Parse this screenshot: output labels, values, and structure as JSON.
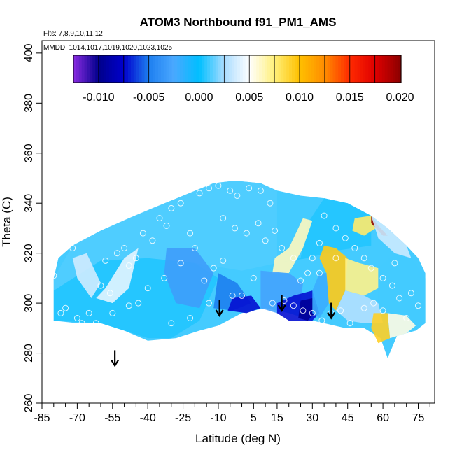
{
  "chart_data": {
    "type": "heatmap",
    "title": "ATOM3 Northbound f91_PM1_AMS",
    "flights_note": "Flts: 7,8,9,10,11,12",
    "mmdd_note": "MMDD: 1014,1017,1019,1020,1023,1025",
    "xlabel": "Latitude (deg N)",
    "ylabel": "Theta (C)",
    "xlim": [
      -85,
      82
    ],
    "ylim": [
      260,
      405
    ],
    "x_ticks": [
      -85,
      -70,
      -55,
      -40,
      -25,
      -10,
      5,
      15,
      30,
      45,
      60,
      75
    ],
    "x_tick_labels": [
      "-85",
      "-70",
      "-55",
      "-40",
      "-25",
      "-10",
      "5",
      "15",
      "30",
      "45",
      "60",
      "75"
    ],
    "x_minor_ticks": [
      -80,
      -75,
      -65,
      -60,
      -50,
      -45,
      -35,
      -30,
      -20,
      -15,
      -5,
      0,
      10,
      20,
      25,
      35,
      40,
      50,
      55,
      65,
      70,
      80
    ],
    "y_ticks": [
      260,
      280,
      300,
      320,
      340,
      360,
      380,
      400
    ],
    "y_tick_labels": [
      "260",
      "280",
      "300",
      "320",
      "340",
      "360",
      "380",
      "400"
    ],
    "colorbar": {
      "range": [
        -0.0125,
        0.0201
      ],
      "tick_values": [
        -0.01,
        -0.005,
        0.0,
        0.005,
        0.01,
        0.015,
        0.02
      ],
      "tick_labels": [
        "-0.010",
        "-0.005",
        "0.000",
        "0.005",
        "0.010",
        "0.015",
        "0.020"
      ],
      "stops": [
        {
          "v": -0.0125,
          "c": "#8b2be2"
        },
        {
          "v": -0.01,
          "c": "#00008b"
        },
        {
          "v": -0.0075,
          "c": "#0000cd"
        },
        {
          "v": -0.005,
          "c": "#1e7ff0"
        },
        {
          "v": -0.0025,
          "c": "#4aa8ff"
        },
        {
          "v": 0.0,
          "c": "#00bfff"
        },
        {
          "v": 0.0025,
          "c": "#a9dcff"
        },
        {
          "v": 0.005,
          "c": "#ffffff"
        },
        {
          "v": 0.0075,
          "c": "#fff07a"
        },
        {
          "v": 0.01,
          "c": "#ffc000"
        },
        {
          "v": 0.0125,
          "c": "#ff8c00"
        },
        {
          "v": 0.015,
          "c": "#ff2a00"
        },
        {
          "v": 0.0175,
          "c": "#e00000"
        },
        {
          "v": 0.0201,
          "c": "#8b0000"
        }
      ]
    },
    "regions": [
      {
        "value": 0.0012,
        "polygon": [
          [
            -80,
            310
          ],
          [
            -72,
            323
          ],
          [
            -60,
            329
          ],
          [
            -48,
            334
          ],
          [
            -38,
            338
          ],
          [
            -25,
            343
          ],
          [
            -12,
            348
          ],
          [
            -3,
            349
          ],
          [
            8,
            348
          ],
          [
            12,
            346
          ],
          [
            15,
            345
          ],
          [
            15,
            316
          ],
          [
            0,
            313
          ],
          [
            -20,
            316
          ],
          [
            -40,
            318
          ],
          [
            -60,
            317
          ],
          [
            -80,
            305
          ]
        ]
      },
      {
        "value": 0.0005,
        "polygon": [
          [
            -80,
            305
          ],
          [
            -60,
            317
          ],
          [
            -40,
            318
          ],
          [
            -20,
            316
          ],
          [
            -10,
            310
          ],
          [
            -18,
            293
          ],
          [
            -30,
            286
          ],
          [
            -40,
            286
          ],
          [
            -50,
            289
          ],
          [
            -60,
            292
          ],
          [
            -80,
            293
          ]
        ]
      },
      {
        "value": 0.0042,
        "polygon": [
          [
            -62,
            302
          ],
          [
            -55,
            300
          ],
          [
            -48,
            306
          ],
          [
            -44,
            322
          ],
          [
            -50,
            318
          ],
          [
            -58,
            306
          ]
        ]
      },
      {
        "value": 0.0036,
        "polygon": [
          [
            -72,
            318
          ],
          [
            -66,
            320
          ],
          [
            -60,
            308
          ],
          [
            -64,
            302
          ],
          [
            -70,
            310
          ]
        ]
      },
      {
        "value": -0.0032,
        "polygon": [
          [
            -32,
            322
          ],
          [
            -20,
            322
          ],
          [
            -12,
            312
          ],
          [
            -18,
            298
          ],
          [
            -28,
            300
          ],
          [
            -33,
            312
          ]
        ]
      },
      {
        "value": -0.005,
        "polygon": [
          [
            -10,
            312
          ],
          [
            -2,
            308
          ],
          [
            4,
            300
          ],
          [
            -4,
            297
          ],
          [
            -12,
            298
          ]
        ]
      },
      {
        "value": -0.0072,
        "polygon": [
          [
            -4,
            302
          ],
          [
            4,
            303
          ],
          [
            8,
            298
          ],
          [
            2,
            296
          ],
          [
            -6,
            297
          ]
        ]
      },
      {
        "value": 0.0005,
        "polygon": [
          [
            15,
            345
          ],
          [
            15,
            316
          ],
          [
            25,
            318
          ],
          [
            28,
            332
          ],
          [
            35,
            342
          ],
          [
            45,
            340
          ],
          [
            55,
            335
          ],
          [
            55,
            323
          ],
          [
            40,
            321
          ],
          [
            28,
            318
          ],
          [
            15,
            316
          ]
        ]
      },
      {
        "value": 0.0062,
        "polygon": [
          [
            13,
            312
          ],
          [
            20,
            312
          ],
          [
            26,
            322
          ],
          [
            30,
            333
          ],
          [
            26,
            334
          ],
          [
            20,
            322
          ],
          [
            14,
            318
          ]
        ]
      },
      {
        "value": -0.0028,
        "polygon": [
          [
            8,
            313
          ],
          [
            20,
            312
          ],
          [
            26,
            308
          ],
          [
            25,
            300
          ],
          [
            15,
            296
          ],
          [
            8,
            298
          ]
        ]
      },
      {
        "value": -0.0072,
        "polygon": [
          [
            15,
            300
          ],
          [
            22,
            303
          ],
          [
            30,
            305
          ],
          [
            33,
            296
          ],
          [
            30,
            293
          ],
          [
            20,
            293
          ],
          [
            15,
            296
          ]
        ]
      },
      {
        "value": -0.0095,
        "polygon": [
          [
            25,
            301
          ],
          [
            30,
            302
          ],
          [
            32,
            297
          ],
          [
            28,
            293
          ],
          [
            24,
            294
          ]
        ]
      },
      {
        "value": -0.002,
        "polygon": [
          [
            30,
            305
          ],
          [
            33,
            312
          ],
          [
            36,
            312
          ],
          [
            37,
            300
          ],
          [
            33,
            294
          ],
          [
            30,
            296
          ]
        ]
      },
      {
        "value": 0.0095,
        "polygon": [
          [
            35,
            323
          ],
          [
            40,
            322
          ],
          [
            45,
            318
          ],
          [
            44,
            305
          ],
          [
            40,
            297
          ],
          [
            37,
            300
          ],
          [
            36,
            312
          ],
          [
            33,
            318
          ]
        ]
      },
      {
        "value": 0.0072,
        "polygon": [
          [
            44,
            318
          ],
          [
            50,
            316
          ],
          [
            58,
            314
          ],
          [
            58,
            306
          ],
          [
            52,
            303
          ],
          [
            44,
            305
          ]
        ]
      },
      {
        "value": 0.0028,
        "polygon": [
          [
            44,
            305
          ],
          [
            52,
            303
          ],
          [
            58,
            300
          ],
          [
            60,
            292
          ],
          [
            52,
            292
          ],
          [
            45,
            293
          ],
          [
            40,
            297
          ]
        ]
      },
      {
        "value": 0.0092,
        "polygon": [
          [
            56,
            296
          ],
          [
            62,
            296
          ],
          [
            63,
            286
          ],
          [
            58,
            284
          ],
          [
            55,
            290
          ]
        ]
      },
      {
        "value": 0.001,
        "polygon": [
          [
            58,
            314
          ],
          [
            65,
            320
          ],
          [
            72,
            318
          ],
          [
            78,
            310
          ],
          [
            78,
            292
          ],
          [
            70,
            288
          ],
          [
            63,
            286
          ],
          [
            62,
            296
          ],
          [
            58,
            300
          ]
        ]
      },
      {
        "value": 0.0055,
        "polygon": [
          [
            62,
            296
          ],
          [
            70,
            295
          ],
          [
            74,
            291
          ],
          [
            70,
            288
          ],
          [
            63,
            286
          ]
        ]
      },
      {
        "value": 0.0078,
        "polygon": [
          [
            48,
            334
          ],
          [
            55,
            335
          ],
          [
            57,
            330
          ],
          [
            52,
            327
          ],
          [
            47,
            329
          ]
        ]
      },
      {
        "value": 0.02,
        "polygon": [
          [
            55,
            335
          ],
          [
            58,
            331
          ],
          [
            62,
            327
          ],
          [
            60,
            327
          ],
          [
            55,
            332
          ]
        ]
      },
      {
        "value": 0.0035,
        "polygon": [
          [
            55,
            335
          ],
          [
            62,
            330
          ],
          [
            70,
            323
          ],
          [
            72,
            318
          ],
          [
            65,
            320
          ],
          [
            58,
            326
          ]
        ]
      }
    ],
    "outline": [
      [
        -80,
        310
      ],
      [
        -78,
        318
      ],
      [
        -72,
        323
      ],
      [
        -60,
        329
      ],
      [
        -48,
        334
      ],
      [
        -38,
        338
      ],
      [
        -25,
        343
      ],
      [
        -12,
        348
      ],
      [
        -3,
        349
      ],
      [
        8,
        348
      ],
      [
        15,
        345
      ],
      [
        25,
        343
      ],
      [
        35,
        342
      ],
      [
        45,
        340
      ],
      [
        55,
        335
      ],
      [
        62,
        330
      ],
      [
        70,
        323
      ],
      [
        75,
        318
      ],
      [
        78,
        312
      ],
      [
        78,
        292
      ],
      [
        74,
        289
      ],
      [
        66,
        287
      ],
      [
        62,
        278
      ],
      [
        59,
        286
      ],
      [
        52,
        290
      ],
      [
        44,
        290
      ],
      [
        35,
        292
      ],
      [
        30,
        293
      ],
      [
        20,
        296
      ],
      [
        10,
        298
      ],
      [
        0,
        296
      ],
      [
        -10,
        291
      ],
      [
        -18,
        289
      ],
      [
        -28,
        286
      ],
      [
        -40,
        285
      ],
      [
        -50,
        289
      ],
      [
        -60,
        292
      ],
      [
        -70,
        292
      ],
      [
        -80,
        293
      ]
    ],
    "arrows": [
      [
        -54,
        275
      ],
      [
        -9.5,
        295
      ],
      [
        17,
        297
      ],
      [
        38,
        294
      ]
    ],
    "points": [
      [
        -62,
        292
      ],
      [
        -70,
        294
      ],
      [
        -75,
        298
      ],
      [
        -80,
        311
      ],
      [
        -77,
        296
      ],
      [
        -72,
        322
      ],
      [
        -58,
        317
      ],
      [
        -53,
        320
      ],
      [
        -50,
        322
      ],
      [
        -45,
        318
      ],
      [
        -48,
        315
      ],
      [
        -42,
        328
      ],
      [
        -38,
        325
      ],
      [
        -35,
        334
      ],
      [
        -32,
        331
      ],
      [
        -30,
        338
      ],
      [
        -26,
        340
      ],
      [
        -22,
        328
      ],
      [
        -18,
        344
      ],
      [
        -14,
        346
      ],
      [
        -10,
        347
      ],
      [
        -5,
        345
      ],
      [
        -2,
        343
      ],
      [
        3,
        346
      ],
      [
        8,
        345
      ],
      [
        12,
        340
      ],
      [
        -33,
        310
      ],
      [
        -40,
        306
      ],
      [
        -44,
        300
      ],
      [
        -48,
        299
      ],
      [
        -56,
        304
      ],
      [
        -60,
        307
      ],
      [
        -65,
        296
      ],
      [
        -26,
        316
      ],
      [
        -20,
        322
      ],
      [
        -16,
        309
      ],
      [
        -12,
        314
      ],
      [
        -8,
        317
      ],
      [
        -4,
        303
      ],
      [
        0,
        303
      ],
      [
        5,
        310
      ],
      [
        10,
        325
      ],
      [
        14,
        329
      ],
      [
        17,
        322
      ],
      [
        22,
        318
      ],
      [
        25,
        309
      ],
      [
        28,
        312
      ],
      [
        30,
        318
      ],
      [
        33,
        324
      ],
      [
        35,
        335
      ],
      [
        40,
        330
      ],
      [
        44,
        326
      ],
      [
        48,
        322
      ],
      [
        52,
        318
      ],
      [
        55,
        314
      ],
      [
        60,
        310
      ],
      [
        64,
        307
      ],
      [
        67,
        302
      ],
      [
        72,
        304
      ],
      [
        75,
        299
      ],
      [
        -8,
        334
      ],
      [
        -3,
        330
      ],
      [
        2,
        328
      ],
      [
        7,
        332
      ],
      [
        13,
        300
      ],
      [
        18,
        301
      ],
      [
        22,
        299
      ],
      [
        26,
        297
      ],
      [
        30,
        296
      ],
      [
        34,
        293
      ],
      [
        38,
        296
      ],
      [
        42,
        297
      ],
      [
        46,
        292
      ],
      [
        52,
        298
      ],
      [
        56,
        300
      ],
      [
        60,
        297
      ],
      [
        -68,
        292
      ],
      [
        -55,
        296
      ],
      [
        -30,
        292
      ],
      [
        -22,
        294
      ],
      [
        -14,
        300
      ],
      [
        40,
        318
      ],
      [
        33,
        312
      ],
      [
        65,
        316
      ],
      [
        70,
        294
      ]
    ]
  }
}
